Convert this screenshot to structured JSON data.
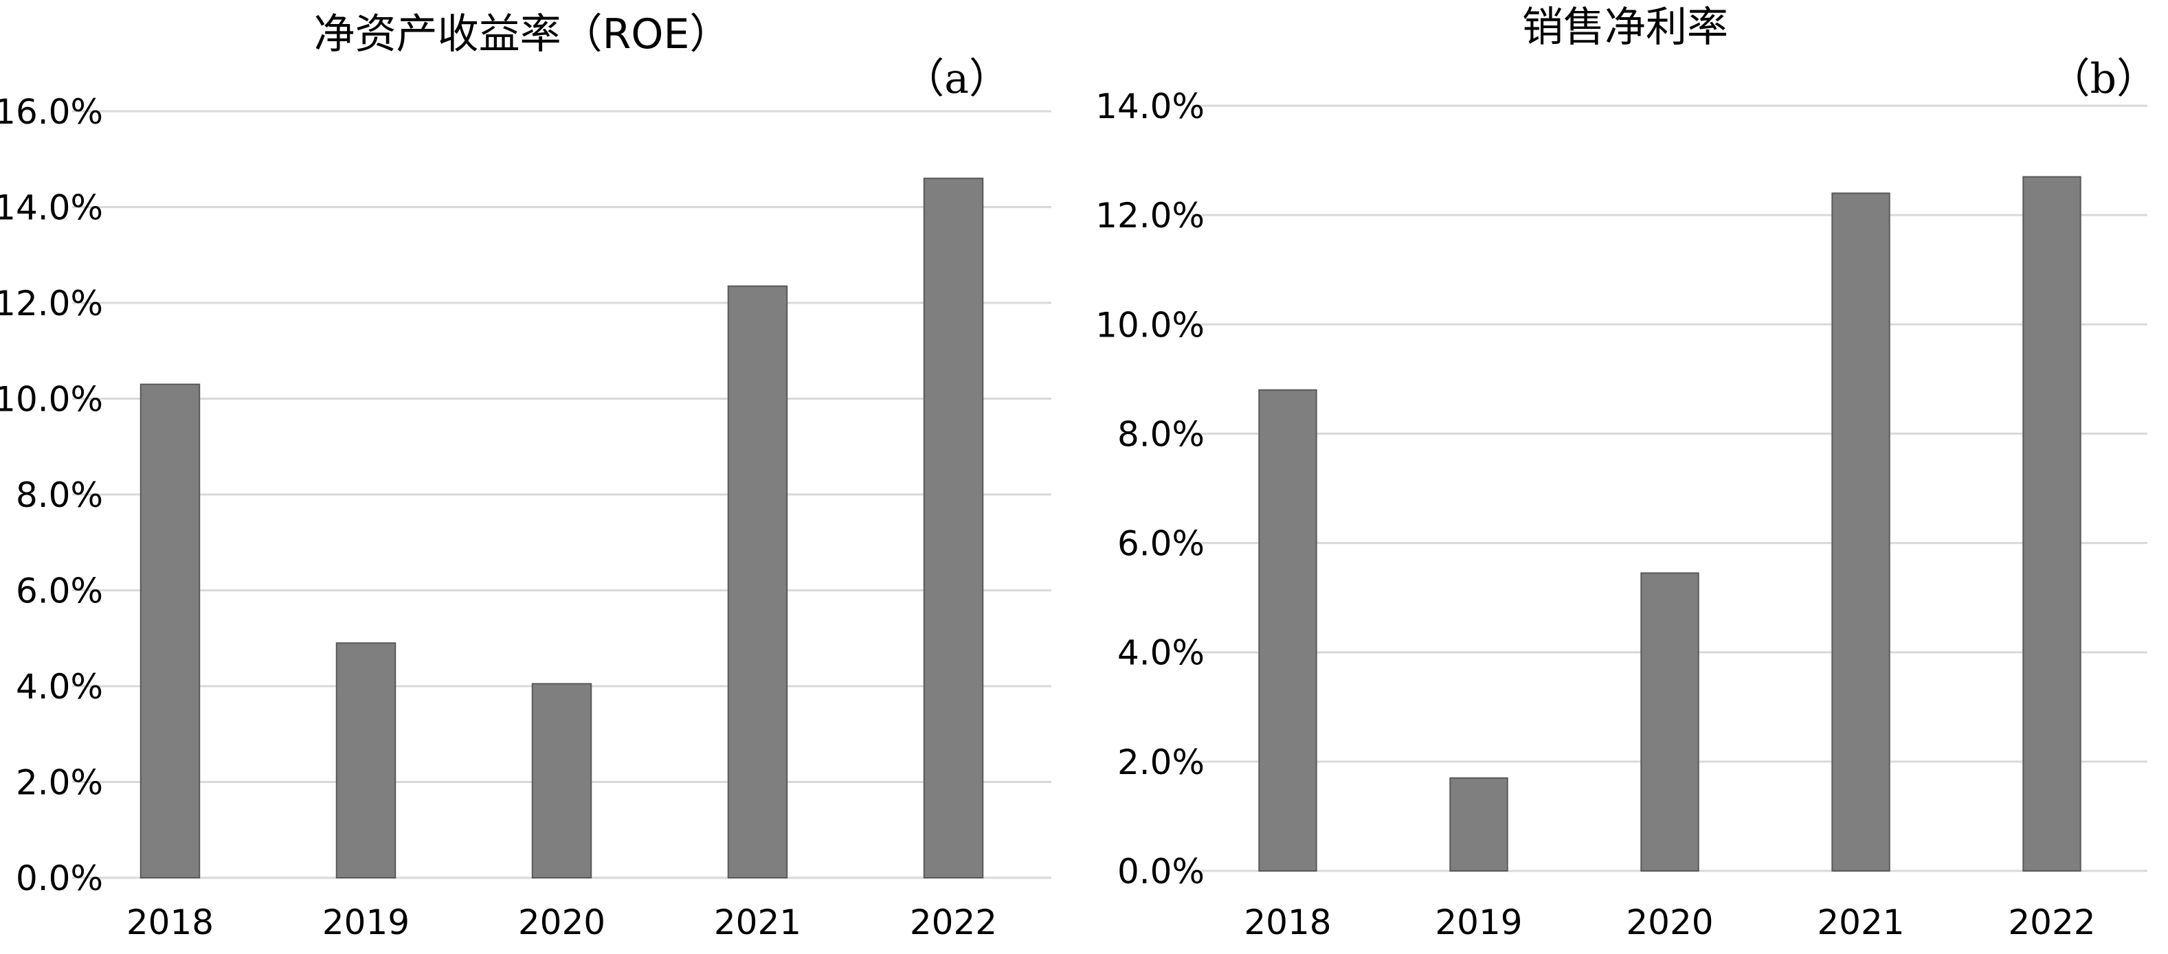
{
  "chart_data": [
    {
      "type": "bar",
      "title": "净资产收益率（ROE）",
      "panel_label": "（a）",
      "categories": [
        "2018",
        "2019",
        "2020",
        "2021",
        "2022"
      ],
      "values": [
        10.3,
        4.9,
        4.05,
        12.35,
        14.6
      ],
      "value_unit": "%",
      "ylim": [
        0,
        16
      ],
      "yticks": [
        "0.0%",
        "2.0%",
        "4.0%",
        "6.0%",
        "8.0%",
        "10.0%",
        "12.0%",
        "14.0%",
        "16.0%"
      ],
      "grid": true,
      "color": "#7f7f7f"
    },
    {
      "type": "bar",
      "title": "销售净利率",
      "panel_label": "（b）",
      "categories": [
        "2018",
        "2019",
        "2020",
        "2021",
        "2022"
      ],
      "values": [
        8.8,
        1.7,
        5.45,
        12.4,
        12.7
      ],
      "value_unit": "%",
      "ylim": [
        0,
        14
      ],
      "yticks": [
        "0.0%",
        "2.0%",
        "4.0%",
        "6.0%",
        "8.0%",
        "10.0%",
        "12.0%",
        "14.0%"
      ],
      "grid": true,
      "color": "#7f7f7f"
    }
  ]
}
